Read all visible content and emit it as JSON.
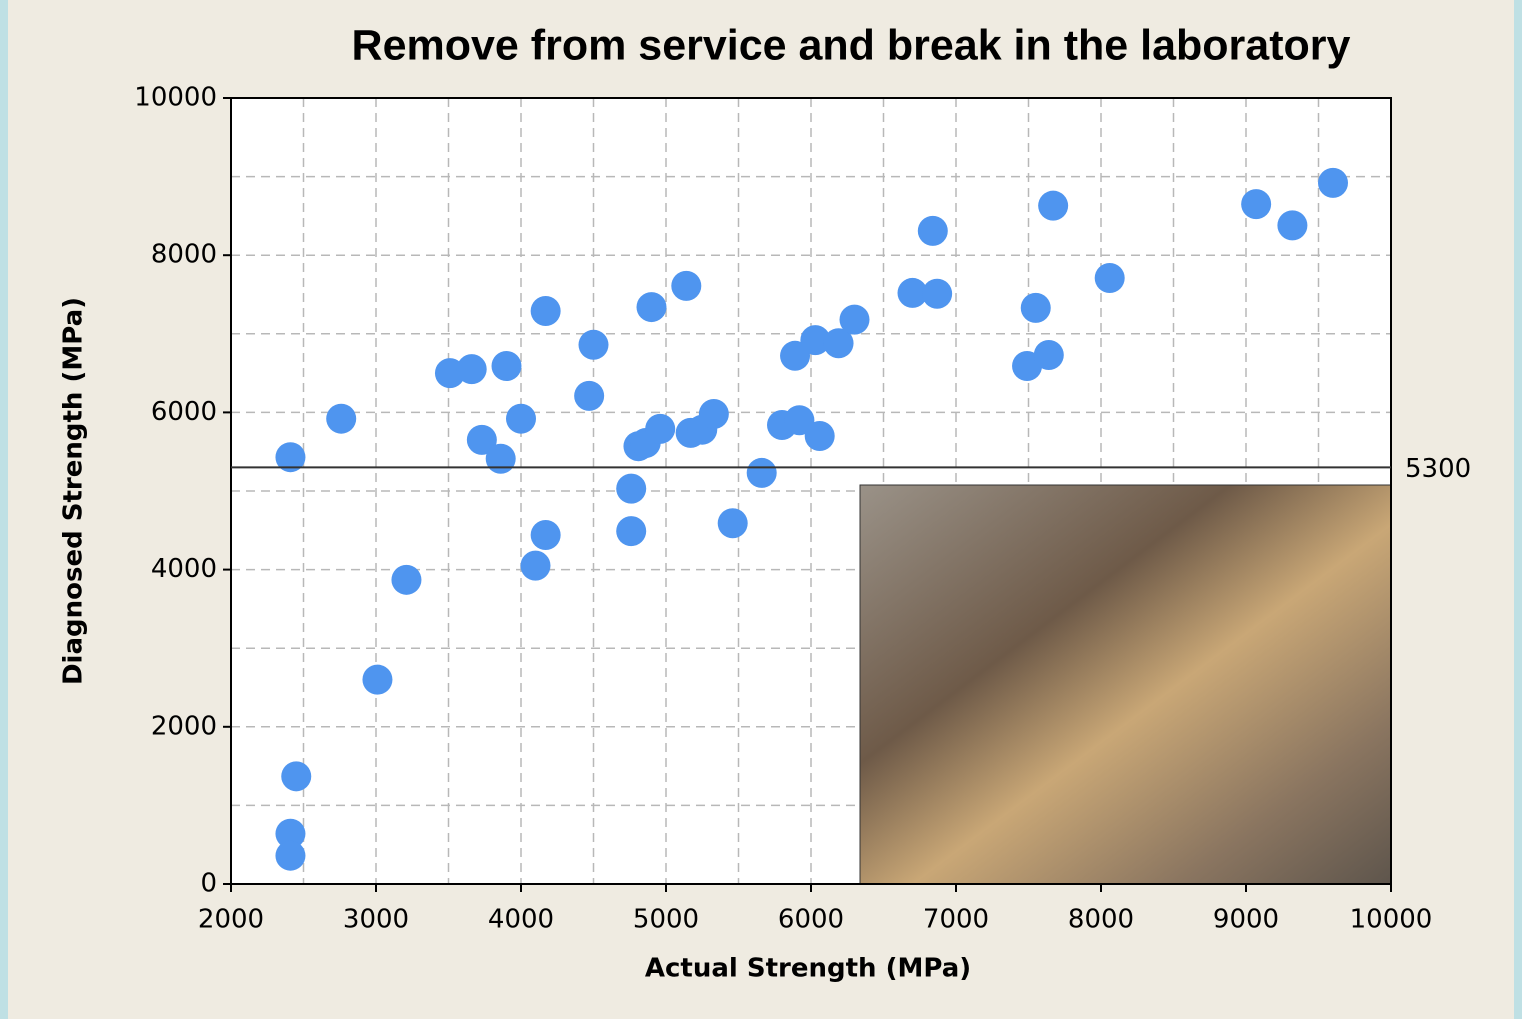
{
  "chart_data": {
    "type": "scatter",
    "title": "Remove from service and break in the laboratory",
    "x_label": "Actual Strength (MPa)",
    "y_label": "Diagnosed Strength (MPa)",
    "color": "#4f95ef",
    "xlim": [
      2000,
      10000
    ],
    "xticks": [
      2000,
      3000,
      4000,
      5000,
      6000,
      7000,
      8000,
      9000,
      10000
    ],
    "ylim": [
      0,
      10000
    ],
    "yticks": [
      0,
      2000,
      4000,
      6000,
      8000,
      10000
    ],
    "grid": true,
    "reference_line": 5300,
    "x": [
      2410,
      2450,
      2410,
      2410,
      2760,
      3010,
      3210,
      3510,
      3660,
      3730,
      3860,
      3900,
      4000,
      4100,
      4170,
      4170,
      4470,
      4500,
      4760,
      4760,
      4810,
      4860,
      4900,
      4960,
      5140,
      5170,
      5250,
      5330,
      5460,
      5660,
      5800,
      5890,
      5920,
      6030,
      6060,
      6190,
      6300,
      6700,
      6840,
      6870,
      7490,
      7550,
      7640,
      7670,
      8060,
      9070,
      9320,
      9600
    ],
    "values": [
      5430,
      1370,
      640,
      360,
      5920,
      2600,
      3870,
      6500,
      6550,
      5650,
      5410,
      6590,
      5920,
      4050,
      7290,
      4440,
      6210,
      6860,
      5030,
      4490,
      5570,
      5610,
      7340,
      5790,
      7610,
      5740,
      5780,
      5980,
      4590,
      5230,
      5840,
      6720,
      5900,
      6920,
      5700,
      6880,
      7180,
      7520,
      8310,
      7510,
      6590,
      7330,
      6730,
      8630,
      7710,
      8650,
      8380,
      8920
    ]
  }
}
